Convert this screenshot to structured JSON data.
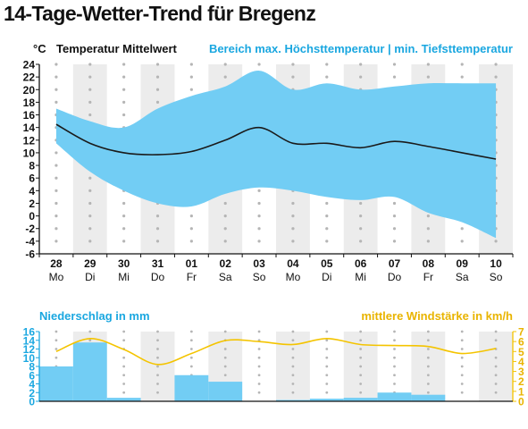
{
  "title": "14-Tage-Wetter-Trend für Bregenz",
  "colors": {
    "band": "#72cdf4",
    "mean_line": "#1a1a1a",
    "blue_text": "#1aa7e0",
    "precip_bar": "#72cdf4",
    "wind_line": "#f4c400",
    "wind_text": "#e9b400",
    "stripe": "#ececec",
    "dot": "#b5b5b5"
  },
  "chart_data": [
    {
      "type": "area",
      "unit_label": "°C",
      "legend_mean": "Temperatur Mittelwert",
      "legend_range": "Bereich max. Höchsttemperatur | min. Tiefsttemperatur",
      "ylim": [
        -6,
        24
      ],
      "yticks": [
        24,
        22,
        20,
        18,
        16,
        14,
        12,
        10,
        8,
        6,
        4,
        2,
        0,
        -2,
        -4,
        -6
      ],
      "x": [
        "28",
        "29",
        "30",
        "31",
        "01",
        "02",
        "03",
        "04",
        "05",
        "06",
        "07",
        "08",
        "09",
        "10"
      ],
      "weekdays": [
        "Mo",
        "Di",
        "Mi",
        "Do",
        "Fr",
        "Sa",
        "So",
        "Mo",
        "Di",
        "Mi",
        "Do",
        "Fr",
        "Sa",
        "So"
      ],
      "series": [
        {
          "values_max": [
            17,
            15,
            14,
            17,
            19,
            20.5,
            23,
            20,
            21,
            20,
            20.5,
            21,
            21,
            21
          ]
        },
        {
          "values_min": [
            11.5,
            7,
            4,
            2,
            1.5,
            3.5,
            4.5,
            4,
            3,
            2.5,
            3,
            0.5,
            -1,
            -3.5
          ]
        },
        {
          "values_mean": [
            14.5,
            11.5,
            10,
            9.7,
            10.2,
            12,
            14,
            11.5,
            11.5,
            10.8,
            11.8,
            11,
            10,
            9
          ]
        }
      ]
    },
    {
      "type": "bar",
      "ylabel": "Niederschlag in mm",
      "ylim": [
        0,
        16
      ],
      "yticks": [
        16,
        14,
        12,
        10,
        8,
        6,
        4,
        2,
        0
      ],
      "values": [
        8,
        13.5,
        0.8,
        0,
        6,
        4.5,
        0,
        0.3,
        0.6,
        0.8,
        2,
        1.5,
        0,
        0
      ]
    },
    {
      "type": "line",
      "ylabel": "mittlere Windstärke in km/h",
      "ylim": [
        0,
        7
      ],
      "yticks": [
        7,
        6,
        5,
        4,
        3,
        2,
        1,
        0
      ],
      "values": [
        5,
        6.3,
        5.2,
        3.7,
        4.8,
        6.1,
        6,
        5.7,
        6.3,
        5.7,
        5.6,
        5.5,
        4.8,
        5.3
      ]
    }
  ]
}
